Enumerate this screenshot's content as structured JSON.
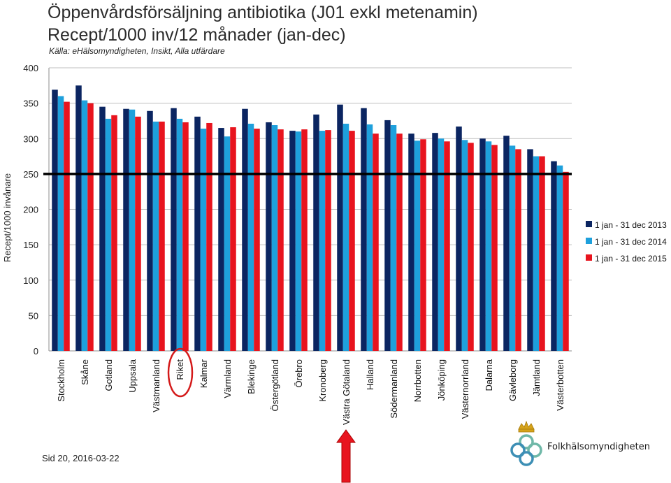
{
  "page": {
    "title_line1": "Öppenvårdsförsäljning antibiotika (J01 exkl metenamin)",
    "title_line2": "Recept/1000 inv/12 månader (jan-dec)",
    "source": "Källa: eHälsomyndigheten, Insikt, Alla utfärdare",
    "footer": "Sid 20, 2016-03-22",
    "logo_text": "Folkhälsomyndigheten"
  },
  "chart_data": {
    "type": "bar",
    "ylabel": "Recept/1000 invånare",
    "ylim": [
      0,
      400
    ],
    "yticks": [
      0,
      50,
      100,
      150,
      200,
      250,
      300,
      350,
      400
    ],
    "reference_line": 250,
    "legend_position": "right",
    "highlighted_category": "Riket",
    "arrow_category": "Västra Götaland",
    "categories": [
      "Stockholm",
      "Skåne",
      "Gotland",
      "Uppsala",
      "Västmanland",
      "Riket",
      "Kalmar",
      "Värmland",
      "Blekinge",
      "Östergötland",
      "Örebro",
      "Kronoberg",
      "Västra Götaland",
      "Halland",
      "Södermanland",
      "Norrbotten",
      "Jönköping",
      "Västernorrland",
      "Dalarna",
      "Gävleborg",
      "Jämtland",
      "Västerbotten"
    ],
    "series": [
      {
        "name": "1 jan - 31 dec 2013",
        "color": "#0b2561",
        "values": [
          369,
          375,
          345,
          342,
          339,
          343,
          331,
          315,
          342,
          323,
          311,
          334,
          348,
          343,
          326,
          307,
          308,
          317,
          300,
          304,
          285,
          268
        ]
      },
      {
        "name": "1 jan - 31 dec 2014",
        "color": "#1ea0dc",
        "values": [
          360,
          354,
          328,
          341,
          324,
          328,
          314,
          303,
          321,
          319,
          310,
          311,
          321,
          320,
          319,
          297,
          300,
          298,
          296,
          290,
          275,
          262
        ]
      },
      {
        "name": "1 jan - 31 dec 2015",
        "color": "#e8141e",
        "values": [
          352,
          350,
          333,
          331,
          324,
          323,
          322,
          316,
          314,
          313,
          313,
          312,
          311,
          307,
          307,
          299,
          296,
          294,
          291,
          285,
          275,
          253
        ]
      }
    ]
  }
}
